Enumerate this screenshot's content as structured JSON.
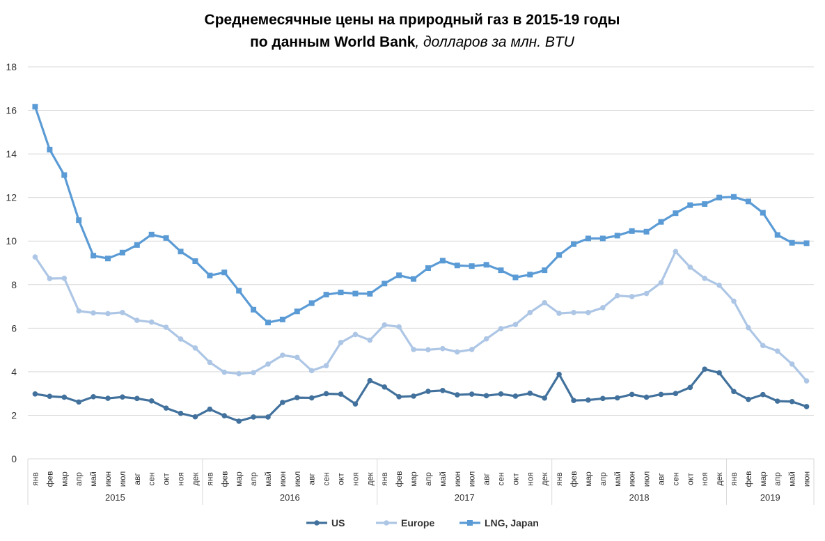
{
  "chart_data": {
    "type": "line",
    "title_line1": "Среднемесячные цены на природный газ в 2015-19 годы",
    "title_line2_bold": "по данным World Bank",
    "title_line2_italic": ", долларов за млн. BTU",
    "ylim": [
      0,
      18
    ],
    "yticks": [
      "0",
      "2",
      "4",
      "6",
      "8",
      "10",
      "12",
      "14",
      "16",
      "18"
    ],
    "months": [
      "янв",
      "фев",
      "мар",
      "апр",
      "май",
      "июн",
      "июл",
      "авг",
      "сен",
      "окт",
      "ноя",
      "дек",
      "янв",
      "фев",
      "мар",
      "апр",
      "май",
      "июн",
      "июл",
      "авг",
      "сен",
      "окт",
      "ноя",
      "дек",
      "янв",
      "фев",
      "мар",
      "апр",
      "май",
      "июн",
      "июл",
      "авг",
      "сен",
      "окт",
      "ноя",
      "дек",
      "янв",
      "фев",
      "мар",
      "апр",
      "май",
      "июн",
      "июл",
      "авг",
      "сен",
      "окт",
      "ноя",
      "дек",
      "янв",
      "фев",
      "мар",
      "апр",
      "май",
      "июн"
    ],
    "years": [
      {
        "label": "2015",
        "count": 12
      },
      {
        "label": "2016",
        "count": 12
      },
      {
        "label": "2017",
        "count": 12
      },
      {
        "label": "2018",
        "count": 12
      },
      {
        "label": "2019",
        "count": 6
      }
    ],
    "legend_position": "bottom",
    "grid": true,
    "series": [
      {
        "name": "US",
        "color": "#41719c",
        "marker": "circle",
        "values": [
          2.98,
          2.87,
          2.83,
          2.61,
          2.85,
          2.78,
          2.84,
          2.77,
          2.66,
          2.33,
          2.09,
          1.93,
          2.28,
          1.98,
          1.73,
          1.92,
          1.92,
          2.59,
          2.81,
          2.8,
          2.99,
          2.97,
          2.52,
          3.59,
          3.3,
          2.85,
          2.88,
          3.1,
          3.14,
          2.94,
          2.97,
          2.9,
          2.98,
          2.88,
          3.01,
          2.79,
          3.88,
          2.68,
          2.7,
          2.77,
          2.8,
          2.96,
          2.83,
          2.96,
          3.0,
          3.28,
          4.12,
          3.95,
          3.09,
          2.73,
          2.95,
          2.65,
          2.63,
          2.4
        ]
      },
      {
        "name": "Europe",
        "color": "#adc6e5",
        "marker": "circle",
        "values": [
          9.27,
          8.28,
          8.29,
          6.79,
          6.7,
          6.67,
          6.72,
          6.36,
          6.28,
          6.04,
          5.5,
          5.09,
          4.43,
          3.98,
          3.91,
          3.96,
          4.35,
          4.76,
          4.66,
          4.05,
          4.28,
          5.34,
          5.71,
          5.45,
          6.15,
          6.06,
          5.02,
          5.01,
          5.06,
          4.91,
          5.02,
          5.51,
          5.98,
          6.17,
          6.72,
          7.17,
          6.68,
          6.72,
          6.72,
          6.94,
          7.49,
          7.45,
          7.59,
          8.09,
          9.52,
          8.8,
          8.29,
          7.97,
          7.24,
          6.02,
          5.2,
          4.95,
          4.35,
          3.58
        ]
      },
      {
        "name": "LNG, Japan",
        "color": "#5b9bd5",
        "marker": "square",
        "values": [
          16.17,
          14.2,
          13.03,
          10.96,
          9.33,
          9.2,
          9.47,
          9.82,
          10.3,
          10.14,
          9.52,
          9.08,
          8.42,
          8.56,
          7.72,
          6.85,
          6.26,
          6.4,
          6.77,
          7.15,
          7.54,
          7.64,
          7.59,
          7.58,
          8.05,
          8.43,
          8.26,
          8.76,
          9.1,
          8.88,
          8.85,
          8.91,
          8.66,
          8.33,
          8.46,
          8.66,
          9.36,
          9.86,
          10.12,
          10.12,
          10.25,
          10.46,
          10.43,
          10.88,
          11.28,
          11.65,
          11.7,
          12.0,
          12.03,
          11.82,
          11.3,
          10.28,
          9.92,
          9.9
        ]
      }
    ]
  }
}
